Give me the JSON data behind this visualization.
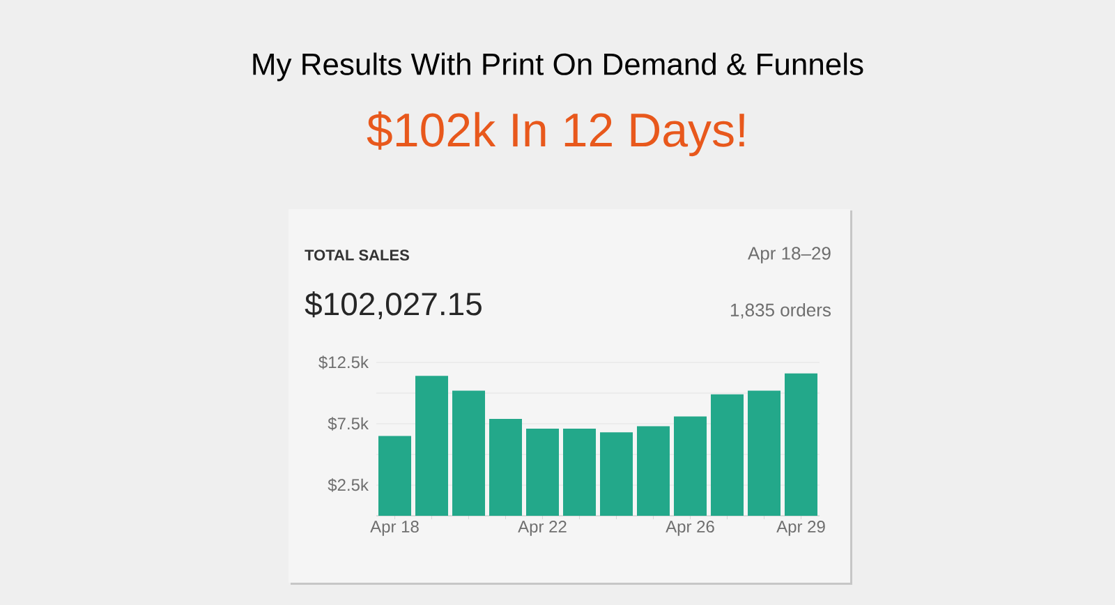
{
  "chart_data": {
    "type": "bar",
    "title": "My Results With Print On Demand & Funnels",
    "subtitle": "$102k In 12 Days!",
    "annotations": [
      "TOTAL SALES",
      "Apr 18–29",
      "$102,027.15",
      "1,835 orders"
    ],
    "categories": [
      "Apr 18",
      null,
      null,
      null,
      "Apr 22",
      null,
      null,
      null,
      "Apr 26",
      null,
      null,
      "Apr 29"
    ],
    "values": [
      6500,
      11400,
      10200,
      7900,
      7100,
      7100,
      6800,
      7300,
      8100,
      9900,
      10200,
      11600
    ],
    "color": "#23a88a",
    "ylim": [
      0,
      12500
    ],
    "yticks": [
      {
        "value": 2500,
        "label": "$2.5k"
      },
      {
        "value": 5000,
        "label": null
      },
      {
        "value": 7500,
        "label": "$7.5k"
      },
      {
        "value": 10000,
        "label": null
      },
      {
        "value": 12500,
        "label": "$12.5k"
      }
    ],
    "grid": "y"
  }
}
